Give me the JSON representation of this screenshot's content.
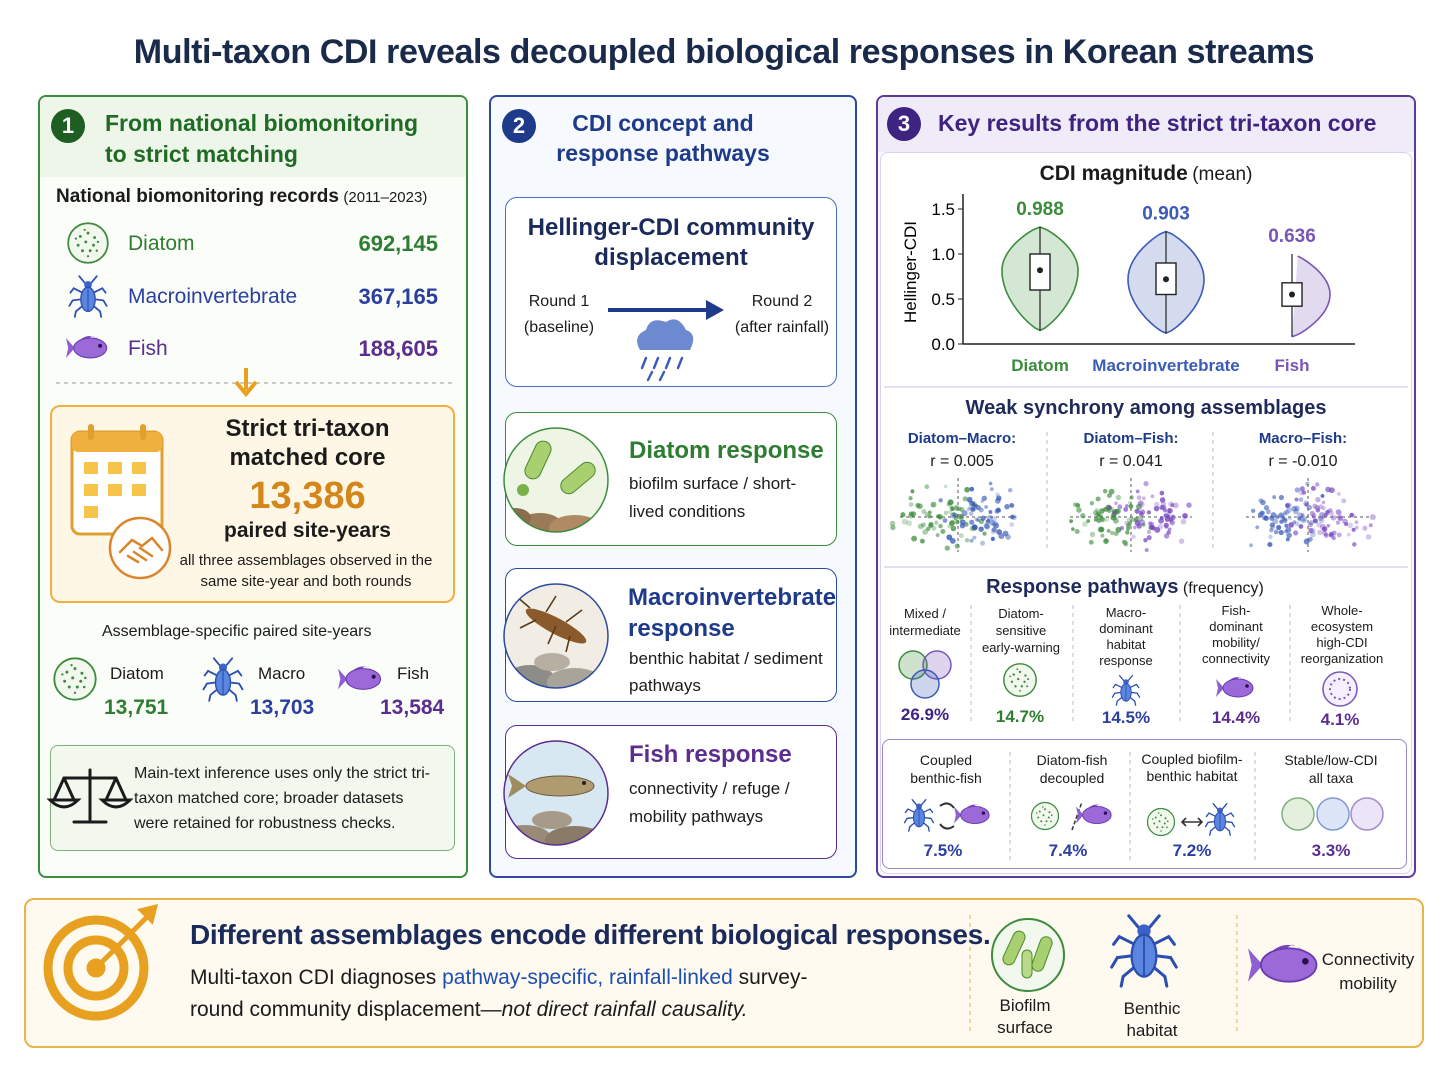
{
  "title": "Multi-taxon CDI reveals decoupled biological responses in Korean streams",
  "panel1": {
    "number": "1",
    "title": "From national biomonitoring to strict matching",
    "records_title": "National biomonitoring records",
    "records_period": "(2011–2023)",
    "records": [
      {
        "taxon": "Diatom",
        "count": "692,145"
      },
      {
        "taxon": "Macroinvertebrate",
        "count": "367,165"
      },
      {
        "taxon": "Fish",
        "count": "188,605"
      }
    ],
    "core": {
      "title": "Strict tri-taxon matched core",
      "count": "13,386",
      "unit": "paired site-years",
      "note": "all three assemblages observed in the same site-year and both rounds"
    },
    "specific_title": "Assemblage-specific paired site-years",
    "specific": [
      {
        "taxon": "Diatom",
        "count": "13,751"
      },
      {
        "taxon": "Macro",
        "count": "13,703"
      },
      {
        "taxon": "Fish",
        "count": "13,584"
      }
    ],
    "inference": "Main-text inference uses only the strict tri-taxon matched core; broader datasets were retained for robustness checks."
  },
  "panel2": {
    "number": "2",
    "title": "CDI concept and response pathways",
    "concept": {
      "title": "Hellinger-CDI community displacement",
      "round1": "Round 1",
      "round1_note": "(baseline)",
      "round2": "Round 2",
      "round2_note": "(after rainfall)"
    },
    "responses": [
      {
        "title": "Diatom response",
        "text": "biofilm surface / short-lived conditions"
      },
      {
        "title": "Macroinvertebrate response",
        "text": "benthic habitat / sediment pathways"
      },
      {
        "title": "Fish response",
        "text": "connectivity / refuge / mobility pathways"
      }
    ]
  },
  "panel3": {
    "number": "3",
    "title": "Key results from the strict tri-taxon core",
    "cdi_magnitude": {
      "type": "violin",
      "title": "CDI magnitude",
      "title_note": "(mean)",
      "y_label": "Hellinger-CDI",
      "categories": [
        "Diatom",
        "Macroinvertebrate",
        "Fish"
      ],
      "colors": [
        "#3d8b3d",
        "#3a5bb8",
        "#7a55b8"
      ],
      "values": [
        0.988,
        0.903,
        0.636
      ],
      "boxes": [
        {
          "min": 0.15,
          "q1": 0.6,
          "median": 0.82,
          "q3": 1.0,
          "max": 1.3
        },
        {
          "min": 0.12,
          "q1": 0.55,
          "median": 0.72,
          "q3": 0.9,
          "max": 1.25
        },
        {
          "min": 0.08,
          "q1": 0.42,
          "median": 0.55,
          "q3": 0.68,
          "max": 1.0
        }
      ],
      "ylim": [
        0,
        1.6
      ],
      "yticks": [
        {
          "value": 0,
          "label": "0.0"
        },
        0.5,
        {
          "value": 1,
          "label": "1.0"
        },
        1.5
      ]
    },
    "synchrony": {
      "title": "Weak synchrony among assemblages",
      "pairs": [
        {
          "label": "Diatom–Macro:",
          "r": "r = 0.005"
        },
        {
          "label": "Diatom–Fish:",
          "r": "r = 0.041"
        },
        {
          "label": "Macro–Fish:",
          "r": "r = -0.010"
        }
      ]
    },
    "pathways": {
      "title": "Response pathways",
      "title_note": "(frequency)",
      "items": [
        {
          "label": "Mixed / intermediate",
          "value": "26.9%"
        },
        {
          "label": "Diatom-sensitive early-warning",
          "value": "14.7%"
        },
        {
          "label": "Macro-dominant habitat response",
          "value": "14.5%"
        },
        {
          "label": "Fish-dominant mobility/ connectivity",
          "value": "14.4%"
        },
        {
          "label": "Whole-ecosystem high-CDI reorganization",
          "value": "4.1%"
        }
      ],
      "coupled": [
        {
          "label": "Coupled benthic-fish",
          "value": "7.5%"
        },
        {
          "label": "Diatom-fish decoupled",
          "value": "7.4%"
        },
        {
          "label": "Coupled biofilm-benthic habitat",
          "value": "7.2%"
        },
        {
          "label": "Stable/low-CDI all taxa",
          "value": "3.3%"
        }
      ]
    }
  },
  "bottom": {
    "headline": "Different assemblages encode different biological responses.",
    "text_pre": "Multi-taxon CDI diagnoses",
    "text_highlight": "pathway-specific, rainfall-linked",
    "text_mid": "survey-round community displacement—",
    "text_italic": "not direct rainfall causality.",
    "icons": [
      {
        "label": "Biofilm surface"
      },
      {
        "label": "Benthic habitat"
      },
      {
        "label": "Connectivity mobility"
      }
    ]
  }
}
